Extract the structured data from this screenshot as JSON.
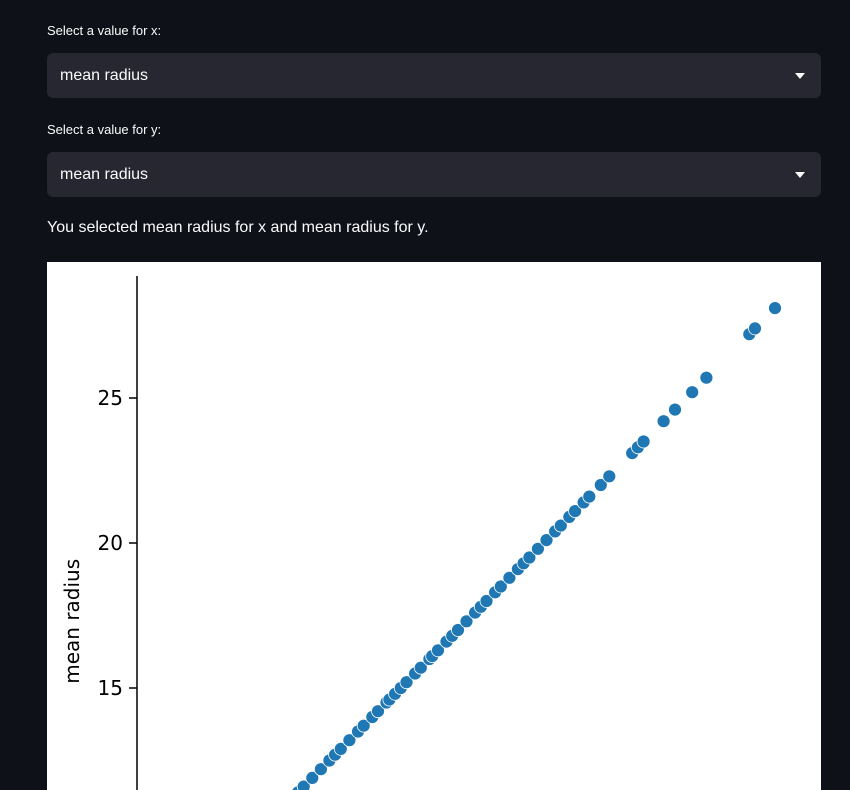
{
  "x_select": {
    "label": "Select a value for x:",
    "value": "mean radius"
  },
  "y_select": {
    "label": "Select a value for y:",
    "value": "mean radius"
  },
  "message": "You selected mean radius for x and mean radius for y.",
  "colors": {
    "background": "#0e1117",
    "select_background": "#262730",
    "point": "#1f77b4"
  },
  "chart_data": {
    "type": "scatter",
    "title": "",
    "xlabel": "",
    "ylabel": "mean radius",
    "ylim": [
      11.5,
      28.8
    ],
    "yticks": [
      15,
      20,
      25
    ],
    "points": [
      {
        "x": 11.4,
        "y": 11.4
      },
      {
        "x": 11.6,
        "y": 11.6
      },
      {
        "x": 11.9,
        "y": 11.9
      },
      {
        "x": 12.2,
        "y": 12.2
      },
      {
        "x": 12.5,
        "y": 12.5
      },
      {
        "x": 12.7,
        "y": 12.7
      },
      {
        "x": 12.9,
        "y": 12.9
      },
      {
        "x": 13.2,
        "y": 13.2
      },
      {
        "x": 13.5,
        "y": 13.5
      },
      {
        "x": 13.7,
        "y": 13.7
      },
      {
        "x": 14.0,
        "y": 14.0
      },
      {
        "x": 14.2,
        "y": 14.2
      },
      {
        "x": 14.5,
        "y": 14.5
      },
      {
        "x": 14.6,
        "y": 14.6
      },
      {
        "x": 14.8,
        "y": 14.8
      },
      {
        "x": 15.0,
        "y": 15.0
      },
      {
        "x": 15.2,
        "y": 15.2
      },
      {
        "x": 15.5,
        "y": 15.5
      },
      {
        "x": 15.7,
        "y": 15.7
      },
      {
        "x": 16.0,
        "y": 16.0
      },
      {
        "x": 16.1,
        "y": 16.1
      },
      {
        "x": 16.3,
        "y": 16.3
      },
      {
        "x": 16.6,
        "y": 16.6
      },
      {
        "x": 16.8,
        "y": 16.8
      },
      {
        "x": 17.0,
        "y": 17.0
      },
      {
        "x": 17.3,
        "y": 17.3
      },
      {
        "x": 17.6,
        "y": 17.6
      },
      {
        "x": 17.8,
        "y": 17.8
      },
      {
        "x": 18.0,
        "y": 18.0
      },
      {
        "x": 18.3,
        "y": 18.3
      },
      {
        "x": 18.5,
        "y": 18.5
      },
      {
        "x": 18.8,
        "y": 18.8
      },
      {
        "x": 19.1,
        "y": 19.1
      },
      {
        "x": 19.3,
        "y": 19.3
      },
      {
        "x": 19.5,
        "y": 19.5
      },
      {
        "x": 19.8,
        "y": 19.8
      },
      {
        "x": 20.1,
        "y": 20.1
      },
      {
        "x": 20.4,
        "y": 20.4
      },
      {
        "x": 20.6,
        "y": 20.6
      },
      {
        "x": 20.9,
        "y": 20.9
      },
      {
        "x": 21.1,
        "y": 21.1
      },
      {
        "x": 21.4,
        "y": 21.4
      },
      {
        "x": 21.6,
        "y": 21.6
      },
      {
        "x": 22.0,
        "y": 22.0
      },
      {
        "x": 22.3,
        "y": 22.3
      },
      {
        "x": 23.1,
        "y": 23.1
      },
      {
        "x": 23.3,
        "y": 23.3
      },
      {
        "x": 23.5,
        "y": 23.5
      },
      {
        "x": 24.2,
        "y": 24.2
      },
      {
        "x": 24.6,
        "y": 24.6
      },
      {
        "x": 25.2,
        "y": 25.2
      },
      {
        "x": 25.7,
        "y": 25.7
      },
      {
        "x": 27.2,
        "y": 27.2
      },
      {
        "x": 27.4,
        "y": 27.4
      },
      {
        "x": 28.1,
        "y": 28.1
      }
    ]
  }
}
